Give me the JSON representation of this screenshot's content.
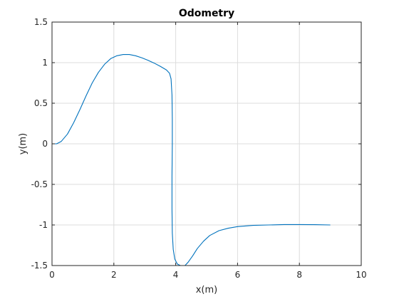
{
  "chart_data": {
    "type": "line",
    "title": "Odometry",
    "xlabel": "x(m)",
    "ylabel": "y(m)",
    "xlim": [
      0,
      10
    ],
    "ylim": [
      -1.5,
      1.5
    ],
    "xticks": [
      0,
      2,
      4,
      6,
      8,
      10
    ],
    "xtick_labels": [
      "0",
      "2",
      "4",
      "6",
      "8",
      "10"
    ],
    "yticks": [
      -1.5,
      -1,
      -0.5,
      0,
      0.5,
      1,
      1.5
    ],
    "ytick_labels": [
      "-1.5",
      "-1",
      "-0.5",
      "0",
      "0.5",
      "1",
      "1.5"
    ],
    "grid": true,
    "series": [
      {
        "color": "#0072BD",
        "points": [
          [
            0.0,
            0.0
          ],
          [
            0.15,
            0.0
          ],
          [
            0.3,
            0.03
          ],
          [
            0.5,
            0.12
          ],
          [
            0.7,
            0.26
          ],
          [
            0.9,
            0.42
          ],
          [
            1.1,
            0.59
          ],
          [
            1.3,
            0.75
          ],
          [
            1.5,
            0.88
          ],
          [
            1.7,
            0.98
          ],
          [
            1.9,
            1.05
          ],
          [
            2.1,
            1.085
          ],
          [
            2.3,
            1.1
          ],
          [
            2.5,
            1.1
          ],
          [
            2.7,
            1.085
          ],
          [
            2.9,
            1.06
          ],
          [
            3.1,
            1.03
          ],
          [
            3.3,
            0.995
          ],
          [
            3.5,
            0.955
          ],
          [
            3.7,
            0.91
          ],
          [
            3.8,
            0.87
          ],
          [
            3.85,
            0.8
          ],
          [
            3.88,
            0.6
          ],
          [
            3.89,
            0.3
          ],
          [
            3.89,
            0.0
          ],
          [
            3.88,
            -0.4
          ],
          [
            3.88,
            -0.8
          ],
          [
            3.89,
            -1.1
          ],
          [
            3.92,
            -1.3
          ],
          [
            3.97,
            -1.42
          ],
          [
            4.05,
            -1.48
          ],
          [
            4.15,
            -1.5
          ],
          [
            4.3,
            -1.5
          ],
          [
            4.4,
            -1.46
          ],
          [
            4.55,
            -1.38
          ],
          [
            4.7,
            -1.29
          ],
          [
            4.9,
            -1.2
          ],
          [
            5.1,
            -1.13
          ],
          [
            5.4,
            -1.07
          ],
          [
            5.7,
            -1.04
          ],
          [
            6.0,
            -1.02
          ],
          [
            6.5,
            -1.005
          ],
          [
            7.0,
            -1.0
          ],
          [
            7.5,
            -0.995
          ],
          [
            8.0,
            -0.995
          ],
          [
            8.5,
            -0.996
          ],
          [
            9.0,
            -1.0
          ]
        ]
      }
    ]
  }
}
